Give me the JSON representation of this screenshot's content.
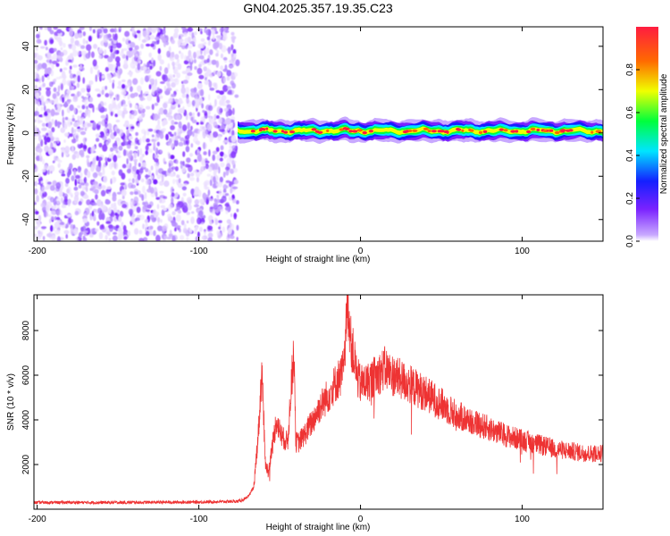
{
  "figure": {
    "title": "GN04.2025.357.19.35.C23"
  },
  "chart_data": [
    {
      "type": "heatmap",
      "xlabel": "Height of straight line (km)",
      "ylabel": "Frequency (Hz)",
      "xlim": [
        -202,
        150
      ],
      "ylim": [
        -50,
        49
      ],
      "x_ticks": [
        -200,
        -100,
        0,
        100
      ],
      "y_ticks": [
        -40,
        -20,
        0,
        20,
        40
      ],
      "noise_region_x": [
        -202,
        -76
      ],
      "signal_band_center_hz": 1,
      "signal_band_width_hz": 6,
      "colorbar": {
        "label": "Normalized spectral amplitude",
        "range": [
          0,
          1
        ],
        "ticks": [
          "0.0",
          "0.2",
          "0.4",
          "0.6",
          "0.8"
        ],
        "colors": [
          "#ffffff",
          "#c8a8ff",
          "#7a22ff",
          "#1420ff",
          "#00e5ff",
          "#00ff3c",
          "#f0ff00",
          "#ff6a00",
          "#ff1c40"
        ]
      },
      "grid": false
    },
    {
      "type": "line",
      "xlabel": "Height of straight line (km)",
      "ylabel": "SNR (10 * v/v)",
      "xlim": [
        -202,
        150
      ],
      "ylim": [
        0,
        9600
      ],
      "x_ticks": [
        -200,
        -100,
        0,
        100
      ],
      "y_ticks": [
        2000,
        4000,
        6000,
        8000
      ],
      "series": [
        {
          "color": "#ee3333",
          "x": [
            -202,
            -150,
            -100,
            -76,
            -70,
            -66,
            -63,
            -61,
            -59,
            -57,
            -55,
            -52,
            -50,
            -48,
            -45,
            -43,
            -41,
            -40,
            -38,
            -35,
            -30,
            -25,
            -20,
            -15,
            -12,
            -10,
            -8,
            -6,
            -4,
            -2,
            0,
            5,
            10,
            15,
            20,
            30,
            40,
            50,
            60,
            70,
            80,
            90,
            100,
            110,
            120,
            130,
            140,
            150
          ],
          "y": [
            300,
            300,
            320,
            350,
            500,
            1000,
            3600,
            6300,
            2200,
            1600,
            2600,
            4000,
            3500,
            3200,
            3000,
            5500,
            7000,
            3000,
            3000,
            3300,
            3900,
            4600,
            5100,
            5700,
            6000,
            6400,
            9600,
            7500,
            6800,
            5900,
            5600,
            5700,
            6000,
            6300,
            6000,
            5600,
            5200,
            4700,
            4200,
            3900,
            3600,
            3300,
            3100,
            2900,
            2700,
            2600,
            2500,
            2500
          ]
        }
      ],
      "grid": false
    }
  ]
}
